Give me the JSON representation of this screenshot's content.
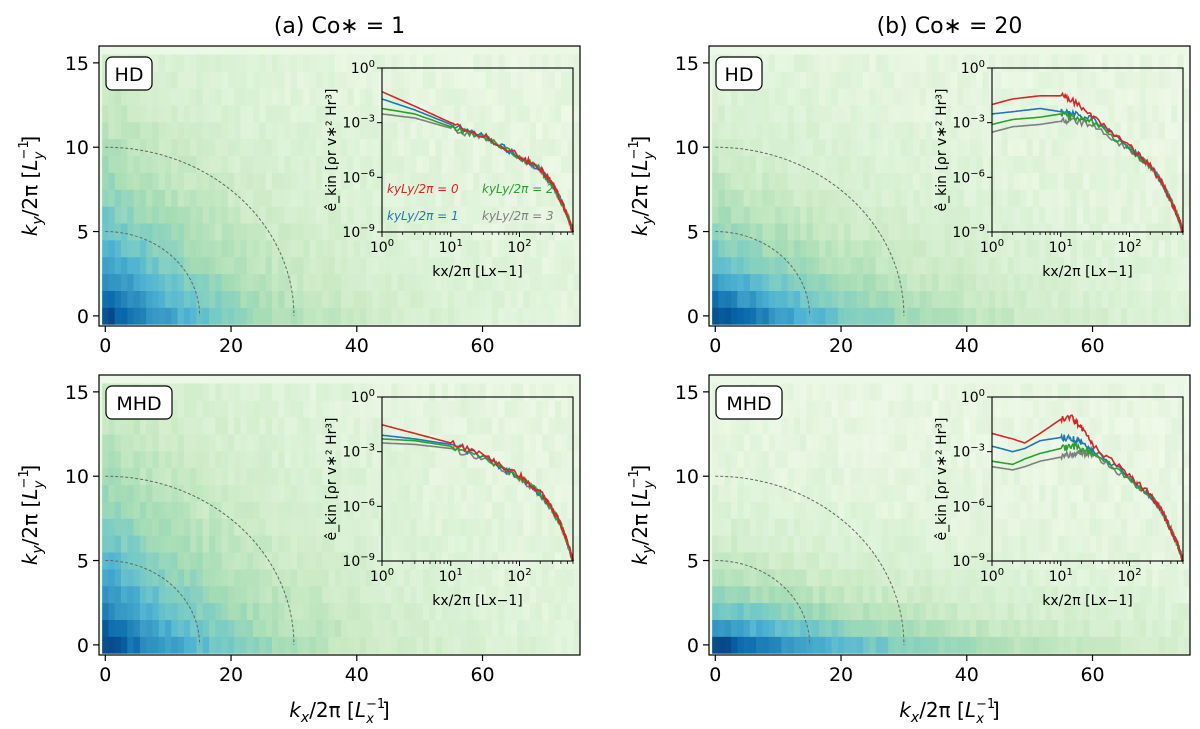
{
  "titles": {
    "a": "(a) Co∗ = 1",
    "b": "(b) Co∗ = 20"
  },
  "panel_labels": [
    "HD",
    "MHD",
    "HD",
    "MHD"
  ],
  "axes": {
    "x_ticks": [
      "0",
      "20",
      "40",
      "60"
    ],
    "y_ticks": [
      "0",
      "5",
      "10",
      "15"
    ],
    "x_label": {
      "base": "k",
      "sub": "x",
      "mid": "/2π [",
      "sup_base": "L",
      "sup_sub": "x",
      "sup": "−1",
      "end": "]"
    },
    "y_label": {
      "base": "k",
      "sub": "y",
      "mid": "/2π [",
      "sup_base": "L",
      "sup_sub": "y",
      "sup": "−1",
      "end": "]"
    }
  },
  "inset": {
    "x_ticks": [
      {
        "base": "10",
        "exp": "0"
      },
      {
        "base": "10",
        "exp": "1"
      },
      {
        "base": "10",
        "exp": "2"
      }
    ],
    "y_ticks": [
      {
        "base": "10",
        "exp": "0"
      },
      {
        "base": "10",
        "exp": "−3"
      },
      {
        "base": "10",
        "exp": "−6"
      },
      {
        "base": "10",
        "exp": "−9"
      }
    ],
    "x_label": "kx/2π [Lx−1]",
    "y_label": "ê_kin [ρr v∗² Hr³]",
    "legend": [
      "kyLy/2π = 0",
      "kyLy/2π = 2",
      "kyLy/2π = 1",
      "kyLy/2π = 3"
    ]
  },
  "colors": {
    "ky0": "#d62728",
    "ky1": "#1f77b4",
    "ky2": "#2ca02c",
    "ky3": "#7f7f7f",
    "dashed": "#666666"
  },
  "chart_data": [
    {
      "type": "heatmap",
      "panel": "(a) HD",
      "title": "(a) Co∗ = 1",
      "xlabel": "kx/2π [Lx−1]",
      "ylabel": "ky/2π [Ly−1]",
      "xlim": [
        0,
        75
      ],
      "ylim": [
        0,
        16
      ],
      "colormap": "GnBu",
      "dashed_circles_ellipse_kx": [
        15,
        30
      ],
      "dashed_circles_ellipse_ky": [
        5,
        10
      ],
      "field": {
        "kx_scale": 13,
        "ky_scale": 4.5,
        "anisotropy_power": 1.0
      },
      "inset": {
        "type": "line",
        "scale": "log-log",
        "xlim": [
          1,
          600
        ],
        "ylim": [
          1e-09,
          1
        ],
        "series": [
          {
            "name": "kyLy/2π = 0",
            "x": [
              1,
              3,
              10,
              30,
              100,
              200,
              300,
              400,
              500,
              600
            ],
            "values": [
              0.05,
              0.008,
              0.001,
              0.0002,
              1.5e-05,
              3e-06,
              5e-07,
              5e-08,
              8e-09,
              1e-09
            ]
          },
          {
            "name": "kyLy/2π = 1",
            "x": [
              1,
              3,
              10,
              30,
              100,
              200,
              300,
              400,
              500,
              600
            ],
            "values": [
              0.02,
              0.005,
              0.0008,
              0.00018,
              1.4e-05,
              2.8e-06,
              4.5e-07,
              5e-08,
              8e-09,
              1e-09
            ]
          },
          {
            "name": "kyLy/2π = 2",
            "x": [
              1,
              3,
              10,
              30,
              100,
              200,
              300,
              400,
              500,
              600
            ],
            "values": [
              0.006,
              0.003,
              0.0006,
              0.00016,
              1.3e-05,
              2.6e-06,
              4.2e-07,
              5e-08,
              8e-09,
              1e-09
            ]
          },
          {
            "name": "kyLy/2π = 3",
            "x": [
              1,
              3,
              10,
              30,
              100,
              200,
              300,
              400,
              500,
              600
            ],
            "values": [
              0.003,
              0.0018,
              0.0005,
              0.00014,
              1.2e-05,
              2.5e-06,
              4e-07,
              5e-08,
              8e-09,
              1e-09
            ]
          }
        ]
      }
    },
    {
      "type": "heatmap",
      "panel": "(a) MHD",
      "title": "(a) Co∗ = 1",
      "xlabel": "kx/2π [Lx−1]",
      "ylabel": "ky/2π [Ly−1]",
      "xlim": [
        0,
        75
      ],
      "ylim": [
        0,
        16
      ],
      "colormap": "GnBu",
      "dashed_circles_ellipse_kx": [
        15,
        30
      ],
      "dashed_circles_ellipse_ky": [
        5,
        10
      ],
      "field": {
        "kx_scale": 14,
        "ky_scale": 5,
        "anisotropy_power": 1.0
      },
      "inset": {
        "type": "line",
        "scale": "log-log",
        "xlim": [
          1,
          600
        ],
        "ylim": [
          1e-09,
          1
        ],
        "series": [
          {
            "name": "kyLy/2π = 0",
            "x": [
              1,
              3,
              10,
              30,
              100,
              200,
              300,
              400,
              500,
              600
            ],
            "values": [
              0.03,
              0.01,
              0.003,
              0.0006,
              5e-05,
              6e-06,
              8e-07,
              1e-07,
              1e-08,
              1e-09
            ]
          },
          {
            "name": "kyLy/2π = 1",
            "x": [
              1,
              3,
              10,
              30,
              100,
              200,
              300,
              400,
              500,
              600
            ],
            "values": [
              0.008,
              0.005,
              0.0025,
              0.0005,
              4e-05,
              5e-06,
              7e-07,
              1e-07,
              1e-08,
              1e-09
            ]
          },
          {
            "name": "kyLy/2π = 2",
            "x": [
              1,
              3,
              10,
              30,
              100,
              200,
              300,
              400,
              500,
              600
            ],
            "values": [
              0.005,
              0.004,
              0.002,
              0.0005,
              4e-05,
              5e-06,
              7e-07,
              1e-07,
              1e-08,
              1e-09
            ]
          },
          {
            "name": "kyLy/2π = 3",
            "x": [
              1,
              3,
              10,
              30,
              100,
              200,
              300,
              400,
              500,
              600
            ],
            "values": [
              0.003,
              0.0025,
              0.0015,
              0.0004,
              3.5e-05,
              4.5e-06,
              6e-07,
              1e-07,
              1e-08,
              1e-09
            ]
          }
        ]
      }
    },
    {
      "type": "heatmap",
      "panel": "(b) HD",
      "title": "(b) Co∗ = 20",
      "xlabel": "kx/2π [Lx−1]",
      "ylabel": "ky/2π [Ly−1]",
      "xlim": [
        0,
        75
      ],
      "ylim": [
        0,
        16
      ],
      "colormap": "GnBu",
      "dashed_circles_ellipse_kx": [
        15,
        30
      ],
      "dashed_circles_ellipse_ky": [
        5,
        10
      ],
      "field": {
        "kx_scale": 16,
        "ky_scale": 3,
        "anisotropy_power": 1.0
      },
      "inset": {
        "type": "line",
        "scale": "log-log",
        "xlim": [
          1,
          600
        ],
        "ylim": [
          1e-09,
          1
        ],
        "series": [
          {
            "name": "kyLy/2π = 0",
            "x": [
              1,
              2,
              5,
              10,
              15,
              30,
              100,
              200,
              300,
              400,
              500,
              600
            ],
            "values": [
              0.01,
              0.02,
              0.03,
              0.03,
              0.015,
              0.002,
              5e-05,
              4e-06,
              5e-07,
              5e-08,
              8e-09,
              1e-09
            ]
          },
          {
            "name": "kyLy/2π = 1",
            "x": [
              1,
              2,
              5,
              10,
              15,
              30,
              100,
              200,
              300,
              400,
              500,
              600
            ],
            "values": [
              0.003,
              0.004,
              0.006,
              0.004,
              0.003,
              0.0015,
              4e-05,
              4e-06,
              5e-07,
              5e-08,
              8e-09,
              1e-09
            ]
          },
          {
            "name": "kyLy/2π = 2",
            "x": [
              1,
              2,
              5,
              10,
              15,
              30,
              100,
              200,
              300,
              400,
              500,
              600
            ],
            "values": [
              0.0008,
              0.0015,
              0.002,
              0.003,
              0.002,
              0.001,
              4e-05,
              4e-06,
              5e-07,
              5e-08,
              8e-09,
              1e-09
            ]
          },
          {
            "name": "kyLy/2π = 3",
            "x": [
              1,
              2,
              5,
              10,
              15,
              30,
              100,
              200,
              300,
              400,
              500,
              600
            ],
            "values": [
              0.0003,
              0.0006,
              0.0008,
              0.0012,
              0.0012,
              0.0008,
              3e-05,
              4e-06,
              5e-07,
              5e-08,
              8e-09,
              1e-09
            ]
          }
        ]
      }
    },
    {
      "type": "heatmap",
      "panel": "(b) MHD",
      "title": "(b) Co∗ = 20",
      "xlabel": "kx/2π [Lx−1]",
      "ylabel": "ky/2π [Ly−1]",
      "xlim": [
        0,
        75
      ],
      "ylim": [
        0,
        16
      ],
      "colormap": "GnBu",
      "dashed_circles_ellipse_kx": [
        15,
        30
      ],
      "dashed_circles_ellipse_ky": [
        5,
        10
      ],
      "field": {
        "kx_scale": 20,
        "ky_scale": 1.8,
        "anisotropy_power": 1.0
      },
      "inset": {
        "type": "line",
        "scale": "log-log",
        "xlim": [
          1,
          600
        ],
        "ylim": [
          1e-09,
          1
        ],
        "series": [
          {
            "name": "kyLy/2π = 0",
            "x": [
              1,
              2,
              3,
              5,
              10,
              15,
              20,
              30,
              100,
              200,
              300,
              400,
              500,
              600
            ],
            "values": [
              0.01,
              0.005,
              0.003,
              0.01,
              0.06,
              0.07,
              0.02,
              0.002,
              5e-05,
              4e-06,
              5e-07,
              5e-08,
              8e-09,
              1e-09
            ]
          },
          {
            "name": "kyLy/2π = 1",
            "x": [
              1,
              2,
              3,
              5,
              10,
              15,
              20,
              30,
              100,
              200,
              300,
              400,
              500,
              600
            ],
            "values": [
              0.002,
              0.001,
              0.0015,
              0.004,
              0.006,
              0.005,
              0.003,
              0.001,
              4e-05,
              4e-06,
              5e-07,
              5e-08,
              8e-09,
              1e-09
            ]
          },
          {
            "name": "kyLy/2π = 2",
            "x": [
              1,
              2,
              3,
              5,
              10,
              15,
              20,
              30,
              100,
              200,
              300,
              400,
              500,
              600
            ],
            "values": [
              0.0003,
              0.0002,
              0.0004,
              0.0008,
              0.0015,
              0.002,
              0.0015,
              0.0008,
              3e-05,
              4e-06,
              5e-07,
              5e-08,
              8e-09,
              1e-09
            ]
          },
          {
            "name": "kyLy/2π = 3",
            "x": [
              1,
              2,
              3,
              5,
              10,
              15,
              20,
              30,
              100,
              200,
              300,
              400,
              500,
              600
            ],
            "values": [
              0.00015,
              0.0001,
              0.00015,
              0.0003,
              0.0005,
              0.0008,
              0.0009,
              0.0006,
              3e-05,
              4e-06,
              5e-07,
              5e-08,
              8e-09,
              1e-09
            ]
          }
        ]
      }
    }
  ]
}
